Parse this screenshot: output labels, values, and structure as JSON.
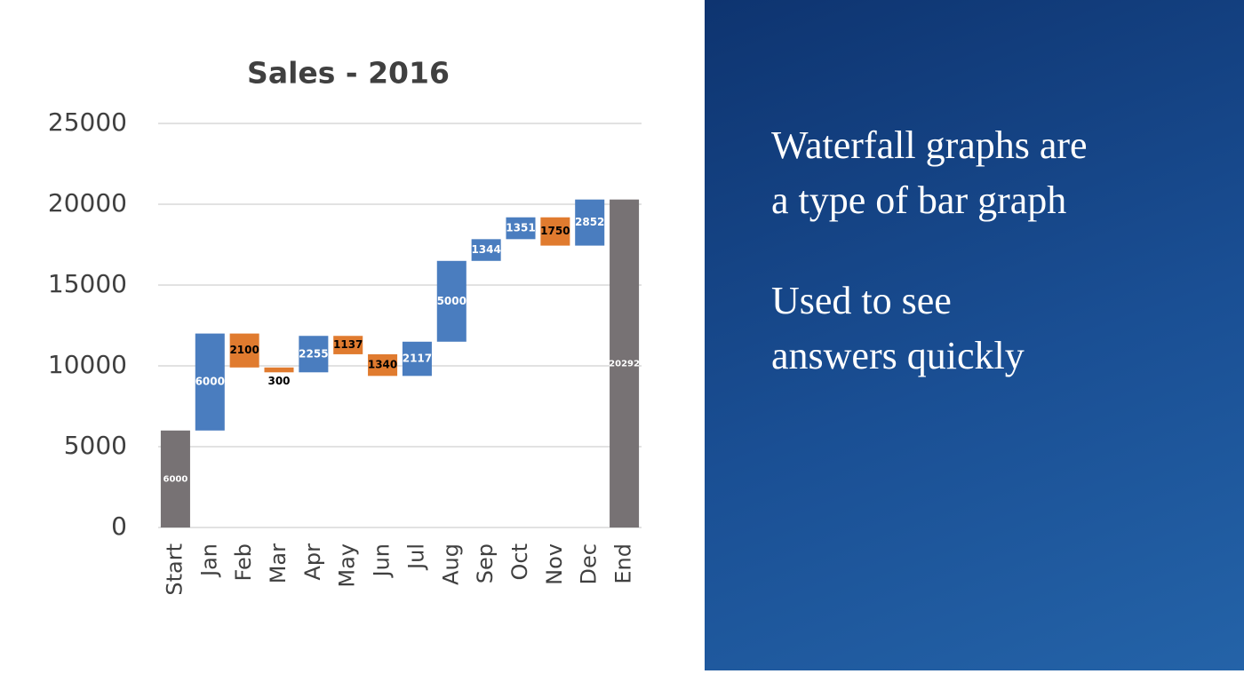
{
  "chart_data": {
    "type": "waterfall",
    "title": "Sales - 2016",
    "categories": [
      "Start",
      "Jan",
      "Feb",
      "Mar",
      "Apr",
      "May",
      "Jun",
      "Jul",
      "Aug",
      "Sep",
      "Oct",
      "Nov",
      "Dec",
      "End"
    ],
    "values": [
      6000,
      6000,
      2100,
      300,
      2255,
      1137,
      1340,
      2117,
      5000,
      1344,
      1351,
      1750,
      2852,
      20292
    ],
    "kinds": [
      "total",
      "increase",
      "decrease",
      "decrease",
      "increase",
      "decrease",
      "decrease",
      "increase",
      "increase",
      "increase",
      "increase",
      "decrease",
      "increase",
      "total"
    ],
    "colors": {
      "increase": "#4a7dbf",
      "decrease": "#e07b2f",
      "total": "#777274"
    },
    "ylim": [
      0,
      25000
    ],
    "yticks": [
      0,
      5000,
      10000,
      15000,
      20000,
      25000
    ],
    "grid": true
  },
  "slide": {
    "points": [
      [
        "Waterfall graphs are",
        "a type of bar graph"
      ],
      [
        "Used to see",
        "answers quickly"
      ]
    ]
  }
}
